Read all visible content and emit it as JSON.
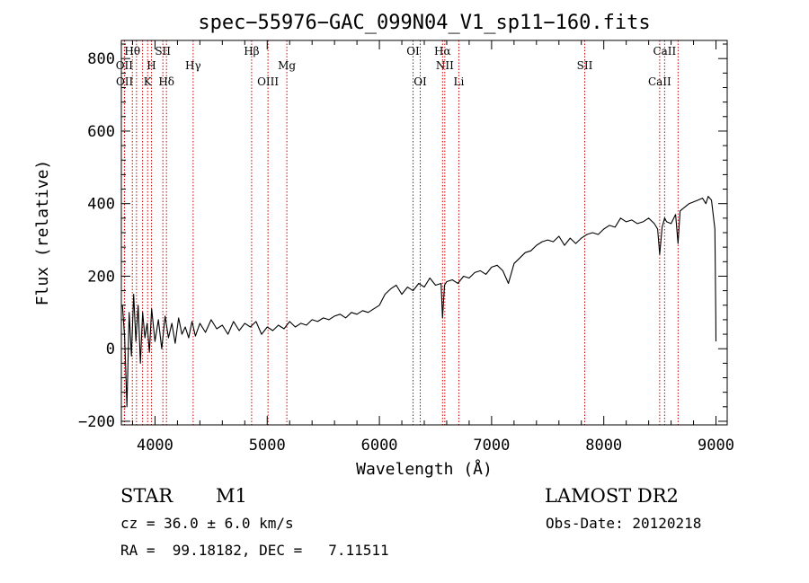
{
  "chart_data": {
    "type": "line",
    "title": "spec−55976−GAC_099N04_V1_sp11−160.fits",
    "xlabel": "Wavelength (Å)",
    "ylabel": "Flux (relative)",
    "xlim": [
      3700,
      9100
    ],
    "ylim": [
      -210,
      850
    ],
    "xticks": [
      4000,
      5000,
      6000,
      7000,
      8000,
      9000
    ],
    "yticks": [
      -200,
      0,
      200,
      400,
      600,
      800
    ],
    "xtick_labels": [
      "4000",
      "5000",
      "6000",
      "7000",
      "8000",
      "9000"
    ],
    "ytick_labels": [
      "−200",
      "0",
      "200",
      "400",
      "600",
      "800"
    ],
    "grid": false,
    "line_color": "#000000",
    "marker_color": "#cc0000",
    "spectral_lines": [
      {
        "label": "Hθ",
        "wavelength": 3798,
        "row": 0
      },
      {
        "label": "OII",
        "wavelength": 3727,
        "row": 1
      },
      {
        "label": "OII",
        "wavelength": 3729,
        "row": 2
      },
      {
        "label": "SII",
        "wavelength": 4070,
        "row": 0
      },
      {
        "label": "H",
        "wavelength": 3968,
        "row": 1
      },
      {
        "label": "K",
        "wavelength": 3934,
        "row": 2
      },
      {
        "label": "Hδ",
        "wavelength": 4102,
        "row": 2
      },
      {
        "label": "Hγ",
        "wavelength": 4340,
        "row": 1
      },
      {
        "label": "Hβ",
        "wavelength": 4861,
        "row": 0
      },
      {
        "label": "Mg",
        "wavelength": 5175,
        "row": 1
      },
      {
        "label": "OIII",
        "wavelength": 5007,
        "row": 2
      },
      {
        "label": "OI",
        "wavelength": 6300,
        "row": 0
      },
      {
        "label": "OI",
        "wavelength": 6364,
        "row": 2
      },
      {
        "label": "Hα",
        "wavelength": 6563,
        "row": 0
      },
      {
        "label": "NII",
        "wavelength": 6583,
        "row": 1
      },
      {
        "label": "Li",
        "wavelength": 6708,
        "row": 2
      },
      {
        "label": "SII",
        "wavelength": 7830,
        "row": 1
      },
      {
        "label": "CaII",
        "wavelength": 8542,
        "row": 0
      },
      {
        "label": "CaII",
        "wavelength": 8498,
        "row": 2
      }
    ],
    "extra_line_markers": [
      3835,
      3889,
      8662
    ],
    "series": [
      {
        "x": [
          3710,
          3730,
          3750,
          3770,
          3790,
          3810,
          3830,
          3850,
          3870,
          3890,
          3910,
          3930,
          3950,
          3970,
          4000,
          4030,
          4060,
          4090,
          4120,
          4150,
          4180,
          4210,
          4240,
          4270,
          4300,
          4330,
          4360,
          4400,
          4450,
          4500,
          4550,
          4600,
          4650,
          4700,
          4750,
          4800,
          4850,
          4900,
          4950,
          5000,
          5050,
          5100,
          5150,
          5200,
          5250,
          5300,
          5350,
          5400,
          5450,
          5500,
          5550,
          5600,
          5650,
          5700,
          5750,
          5800,
          5850,
          5900,
          5950,
          6000,
          6050,
          6100,
          6150,
          6200,
          6250,
          6300,
          6350,
          6400,
          6450,
          6500,
          6550,
          6563,
          6580,
          6600,
          6650,
          6700,
          6750,
          6800,
          6850,
          6900,
          6950,
          7000,
          7050,
          7100,
          7150,
          7200,
          7250,
          7300,
          7350,
          7400,
          7450,
          7500,
          7550,
          7600,
          7650,
          7700,
          7750,
          7800,
          7850,
          7900,
          7950,
          8000,
          8050,
          8100,
          8150,
          8200,
          8250,
          8300,
          8350,
          8400,
          8450,
          8480,
          8498,
          8520,
          8542,
          8560,
          8600,
          8640,
          8662,
          8680,
          8720,
          8760,
          8800,
          8840,
          8880,
          8910,
          8930,
          8960,
          8990,
          8998,
          9000
        ],
        "y": [
          120,
          30,
          -160,
          100,
          -20,
          150,
          20,
          120,
          -40,
          100,
          30,
          70,
          -10,
          110,
          20,
          80,
          0,
          90,
          30,
          70,
          15,
          85,
          40,
          60,
          30,
          75,
          35,
          70,
          45,
          80,
          55,
          65,
          40,
          75,
          50,
          70,
          60,
          75,
          40,
          60,
          50,
          65,
          55,
          75,
          60,
          70,
          65,
          80,
          75,
          85,
          80,
          90,
          95,
          85,
          100,
          95,
          105,
          100,
          110,
          120,
          150,
          165,
          175,
          150,
          170,
          160,
          180,
          170,
          195,
          175,
          180,
          85,
          175,
          185,
          190,
          180,
          200,
          195,
          210,
          215,
          205,
          225,
          230,
          215,
          180,
          235,
          250,
          265,
          270,
          285,
          295,
          300,
          295,
          310,
          285,
          305,
          290,
          305,
          315,
          320,
          315,
          330,
          340,
          335,
          360,
          350,
          355,
          345,
          350,
          360,
          345,
          330,
          260,
          335,
          360,
          350,
          345,
          370,
          290,
          380,
          390,
          400,
          405,
          410,
          415,
          400,
          420,
          410,
          330,
          90,
          20
        ]
      }
    ]
  },
  "footer": {
    "object_class": "STAR",
    "object_subclass": "M1",
    "survey": "LAMOST DR2",
    "cz": "cz = 36.0 ± 6.0 km/s",
    "obs_date": "Obs-Date: 20120218",
    "ra_dec": "RA =  99.18182, DEC =   7.11511"
  }
}
